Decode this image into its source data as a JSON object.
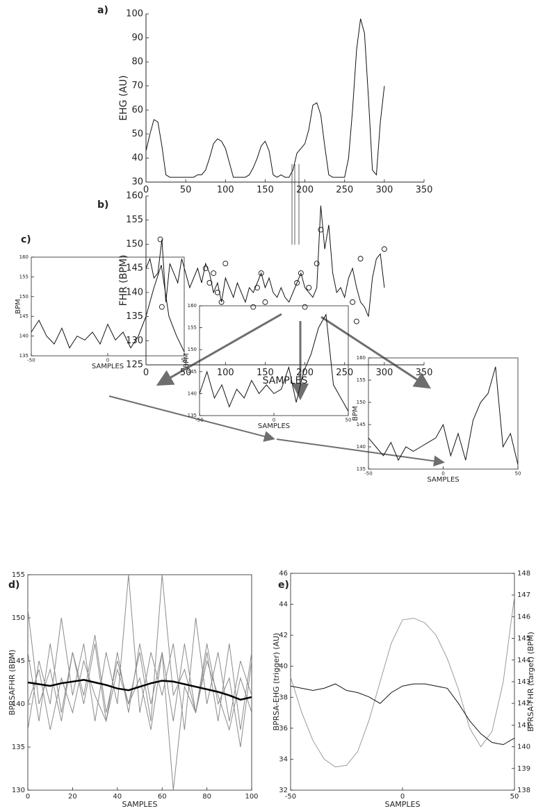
{
  "chart_data": [
    {
      "type": "line",
      "panel": "a)",
      "ylabel": "EHG (AU)",
      "box": false,
      "xlim": [
        0,
        350
      ],
      "xticks": [
        0,
        50,
        100,
        150,
        200,
        250,
        300,
        350
      ],
      "ylim": [
        30,
        100
      ],
      "yticks": [
        30,
        40,
        50,
        60,
        70,
        80,
        90,
        100
      ],
      "x": [
        0,
        5,
        10,
        15,
        20,
        25,
        30,
        35,
        40,
        45,
        50,
        55,
        60,
        65,
        70,
        75,
        80,
        85,
        90,
        95,
        100,
        105,
        110,
        115,
        120,
        125,
        130,
        135,
        140,
        145,
        150,
        155,
        160,
        165,
        170,
        175,
        180,
        185,
        190,
        195,
        200,
        205,
        210,
        215,
        220,
        225,
        230,
        235,
        240,
        245,
        250,
        255,
        260,
        265,
        270,
        275,
        280,
        285,
        290,
        295,
        300
      ],
      "series": [
        {
          "color": "#111111",
          "values": [
            43,
            50,
            56,
            55,
            45,
            33,
            32,
            32,
            32,
            32,
            32,
            32,
            32,
            33,
            33,
            35,
            40,
            46,
            48,
            47,
            44,
            38,
            32,
            32,
            32,
            32,
            33,
            36,
            40,
            45,
            47,
            43,
            33,
            32,
            33,
            32,
            32,
            35,
            42,
            44,
            46,
            52,
            62,
            63,
            58,
            45,
            33,
            32,
            32,
            32,
            32,
            40,
            60,
            85,
            98,
            92,
            65,
            35,
            33,
            55,
            70
          ]
        }
      ]
    },
    {
      "type": "line",
      "panel": "b)",
      "ylabel": "FHR (BPM)",
      "xlabel": "SAMPLES",
      "box": false,
      "xlim": [
        0,
        350
      ],
      "xticks": [
        0,
        50,
        100,
        150,
        200,
        250,
        300,
        350
      ],
      "ylim": [
        125,
        160
      ],
      "yticks": [
        125,
        130,
        135,
        140,
        145,
        150,
        155,
        160
      ],
      "x": [
        0,
        5,
        10,
        15,
        20,
        25,
        30,
        35,
        40,
        45,
        50,
        55,
        60,
        65,
        70,
        75,
        80,
        85,
        90,
        95,
        100,
        105,
        110,
        115,
        120,
        125,
        130,
        135,
        140,
        145,
        150,
        155,
        160,
        165,
        170,
        175,
        180,
        185,
        190,
        195,
        200,
        205,
        210,
        215,
        220,
        225,
        230,
        235,
        240,
        245,
        250,
        255,
        260,
        265,
        270,
        275,
        280,
        285,
        290,
        295,
        300
      ],
      "series": [
        {
          "color": "#111111",
          "values": [
            145,
            147,
            143,
            144,
            151,
            138,
            146,
            144,
            142,
            147,
            144,
            141,
            143,
            145,
            142,
            146,
            144,
            140,
            142,
            138,
            143,
            141,
            139,
            142,
            140,
            138,
            141,
            140,
            142,
            144,
            141,
            143,
            140,
            139,
            141,
            139,
            138,
            140,
            142,
            144,
            141,
            140,
            139,
            141,
            158,
            149,
            154,
            144,
            140,
            141,
            139,
            143,
            145,
            141,
            138,
            137,
            135,
            143,
            147,
            148,
            141
          ]
        },
        {
          "color": "#111111",
          "marker": "circle",
          "x": [
            18,
            20,
            75,
            80,
            85,
            90,
            95,
            100,
            135,
            140,
            145,
            150,
            190,
            195,
            200,
            205,
            215,
            220,
            260,
            265,
            270,
            300
          ],
          "values": [
            151,
            137,
            145,
            142,
            144,
            140,
            138,
            146,
            137,
            141,
            144,
            138,
            142,
            144,
            137,
            141,
            146,
            153,
            138,
            134,
            147,
            149
          ]
        }
      ]
    },
    {
      "type": "line",
      "panel": "c)",
      "ylabel": "BPM",
      "xlabel": "SAMPLES",
      "box": true,
      "xlim": [
        -50,
        50
      ],
      "xticks": [
        -50,
        0,
        50
      ],
      "ylim": [
        135,
        160
      ],
      "yticks": [
        135,
        140,
        145,
        150,
        155,
        160
      ],
      "x": [
        -50,
        -45,
        -40,
        -35,
        -30,
        -25,
        -20,
        -15,
        -10,
        -5,
        0,
        5,
        10,
        15,
        20,
        25,
        30,
        35,
        40,
        45,
        50
      ],
      "series": [
        {
          "color": "#111111",
          "values": [
            141,
            144,
            140,
            138,
            142,
            137,
            140,
            139,
            141,
            138,
            143,
            139,
            141,
            137,
            140,
            145,
            152,
            158,
            145,
            140,
            136
          ]
        }
      ]
    },
    {
      "type": "line",
      "ylabel": "BPM",
      "xlabel": "SAMPLES",
      "box": true,
      "xlim": [
        -50,
        50
      ],
      "xticks": [
        -50,
        0,
        50
      ],
      "ylim": [
        135,
        160
      ],
      "yticks": [
        135,
        140,
        145,
        150,
        155,
        160
      ],
      "x": [
        -50,
        -45,
        -40,
        -35,
        -30,
        -25,
        -20,
        -15,
        -10,
        -5,
        0,
        5,
        10,
        15,
        20,
        25,
        30,
        35,
        40,
        45,
        50
      ],
      "series": [
        {
          "color": "#111111",
          "values": [
            140,
            145,
            139,
            142,
            137,
            141,
            139,
            143,
            140,
            142,
            140,
            141,
            146,
            138,
            145,
            149,
            155,
            158,
            142,
            139,
            136
          ]
        }
      ]
    },
    {
      "type": "line",
      "ylabel": "BPM",
      "xlabel": "SAMPLES",
      "box": true,
      "xlim": [
        -50,
        50
      ],
      "xticks": [
        -50,
        0,
        50
      ],
      "ylim": [
        135,
        160
      ],
      "yticks": [
        135,
        140,
        145,
        150,
        155,
        160
      ],
      "x": [
        -50,
        -45,
        -40,
        -35,
        -30,
        -25,
        -20,
        -15,
        -10,
        -5,
        0,
        5,
        10,
        15,
        20,
        25,
        30,
        35,
        40,
        45,
        50
      ],
      "series": [
        {
          "color": "#111111",
          "values": [
            142,
            140,
            138,
            141,
            137,
            140,
            139,
            140,
            141,
            142,
            145,
            138,
            143,
            137,
            146,
            150,
            152,
            158,
            140,
            143,
            136
          ]
        }
      ]
    },
    {
      "type": "line",
      "panel": "d)",
      "ylabel": "BPRSAFHR (BPM)",
      "xlabel": "SAMPLES",
      "box": true,
      "xlim": [
        0,
        100
      ],
      "xticks": [
        0,
        20,
        40,
        60,
        80,
        100
      ],
      "ylim": [
        130,
        155
      ],
      "yticks": [
        130,
        135,
        140,
        145,
        150,
        155
      ],
      "x": [
        0,
        5,
        10,
        15,
        20,
        25,
        30,
        35,
        40,
        45,
        50,
        55,
        60,
        65,
        70,
        75,
        80,
        85,
        90,
        95,
        100
      ],
      "series": [
        {
          "color": "#8a8a8a",
          "values": [
            146,
            138,
            147,
            139,
            146,
            140,
            147,
            138,
            146,
            139,
            147,
            140,
            146,
            138,
            147,
            139,
            146,
            138,
            147,
            137,
            146
          ]
        },
        {
          "color": "#8a8a8a",
          "values": [
            137,
            145,
            140,
            150,
            141,
            147,
            138,
            146,
            140,
            155,
            139,
            146,
            141,
            147,
            137,
            150,
            140,
            146,
            138,
            145,
            141
          ]
        },
        {
          "color": "#8a8a8a",
          "values": [
            151,
            140,
            144,
            138,
            146,
            141,
            148,
            139,
            145,
            140,
            146,
            138,
            155,
            141,
            144,
            139,
            147,
            140,
            143,
            135,
            145
          ]
        },
        {
          "color": "#8a8a8a",
          "values": [
            140,
            144,
            137,
            143,
            139,
            145,
            141,
            138,
            144,
            140,
            143,
            137,
            146,
            130,
            142,
            139,
            145,
            141,
            137,
            143,
            139
          ]
        },
        {
          "color": "#000000",
          "width": 2.5,
          "values": [
            142.5,
            142.3,
            142.1,
            142.4,
            142.6,
            142.8,
            142.5,
            142.2,
            141.8,
            141.6,
            142.0,
            142.4,
            142.7,
            142.6,
            142.3,
            142.0,
            141.7,
            141.4,
            141.0,
            140.5,
            140.8
          ]
        }
      ]
    },
    {
      "type": "line",
      "panel": "e)",
      "ylabel": "BPRSA-EHG (trigger) (AU)",
      "y2label": "BPRSA-FHR (target) (BPM)",
      "xlabel": "SAMPLES",
      "box": true,
      "xlim": [
        -50,
        50
      ],
      "xticks": [
        -50,
        0,
        50
      ],
      "ylim": [
        32,
        46
      ],
      "yticks": [
        32,
        34,
        36,
        38,
        40,
        42,
        44,
        46
      ],
      "y2lim": [
        138,
        148
      ],
      "y2ticks": [
        138,
        139,
        140,
        141,
        142,
        143,
        144,
        145,
        146,
        147,
        148
      ],
      "x": [
        -50,
        -45,
        -40,
        -35,
        -30,
        -25,
        -20,
        -15,
        -10,
        -5,
        0,
        5,
        10,
        15,
        20,
        25,
        30,
        35,
        40,
        45,
        50
      ],
      "series": [
        {
          "color": "#9a9a9a",
          "values": [
            39.3,
            37,
            35.2,
            34,
            33.5,
            33.6,
            34.5,
            36.5,
            39,
            41.5,
            43,
            43.1,
            42.8,
            42,
            40.5,
            38.5,
            36,
            34.8,
            35.8,
            39,
            44.5
          ]
        },
        {
          "color": "#111111",
          "axis": "y2",
          "values": [
            142.8,
            142.7,
            142.6,
            142.7,
            142.9,
            142.6,
            142.5,
            142.3,
            142.0,
            142.5,
            142.8,
            142.9,
            142.9,
            142.8,
            142.7,
            142.0,
            141.2,
            140.6,
            140.2,
            140.1,
            140.4
          ]
        }
      ]
    }
  ]
}
